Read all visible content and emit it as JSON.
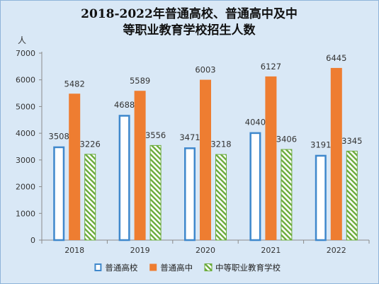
{
  "chart_data": {
    "type": "bar",
    "title_lines": [
      "2018-2022年普通高校、普通高中及中",
      "等职业教育学校招生人数"
    ],
    "ylabel": "人",
    "ylim": [
      0,
      7000
    ],
    "yticks": [
      0,
      1000,
      2000,
      3000,
      4000,
      5000,
      6000,
      7000
    ],
    "categories": [
      "2018",
      "2019",
      "2020",
      "2021",
      "2022"
    ],
    "series": [
      {
        "name": "普通高校",
        "values": [
          3508,
          4688,
          3471,
          4040,
          3191
        ],
        "color": "#3f88cc",
        "style": "outline"
      },
      {
        "name": "普通高中",
        "values": [
          5482,
          5589,
          6003,
          6127,
          6445
        ],
        "color": "#ee7d31",
        "style": "solid"
      },
      {
        "name": "中等职业教育学校",
        "values": [
          3226,
          3556,
          3218,
          3406,
          3345
        ],
        "color": "#6aab3a",
        "style": "hatched"
      }
    ],
    "legend_position": "bottom",
    "grid": false
  },
  "colors": {
    "background": "#d9e8f6",
    "axis": "#8a8a8a"
  }
}
